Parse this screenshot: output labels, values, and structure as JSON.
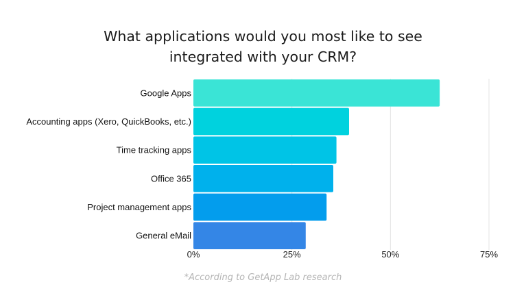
{
  "chart_data": {
    "type": "bar",
    "orientation": "horizontal",
    "title": "What applications would you most like to see\nintegrated with your CRM?",
    "categories": [
      "Google Apps",
      "Accounting apps (Xero, QuickBooks, etc.)",
      "Time tracking apps",
      "Office 365",
      "Project management apps",
      "General eMail"
    ],
    "values": [
      62.5,
      39.5,
      36.3,
      35.5,
      33.8,
      28.5
    ],
    "value_unit": "%",
    "xlim": [
      0,
      75
    ],
    "x_ticks": [
      0,
      25,
      50,
      75
    ],
    "x_tick_labels": [
      "0%",
      "25%",
      "50%",
      "75%"
    ],
    "grid": true,
    "legend": "none",
    "bar_colors": [
      "#3ae4d6",
      "#00d2de",
      "#00c4e6",
      "#00b1ec",
      "#039ded",
      "#3486e6"
    ]
  },
  "footnote": "*According to GetApp Lab research"
}
